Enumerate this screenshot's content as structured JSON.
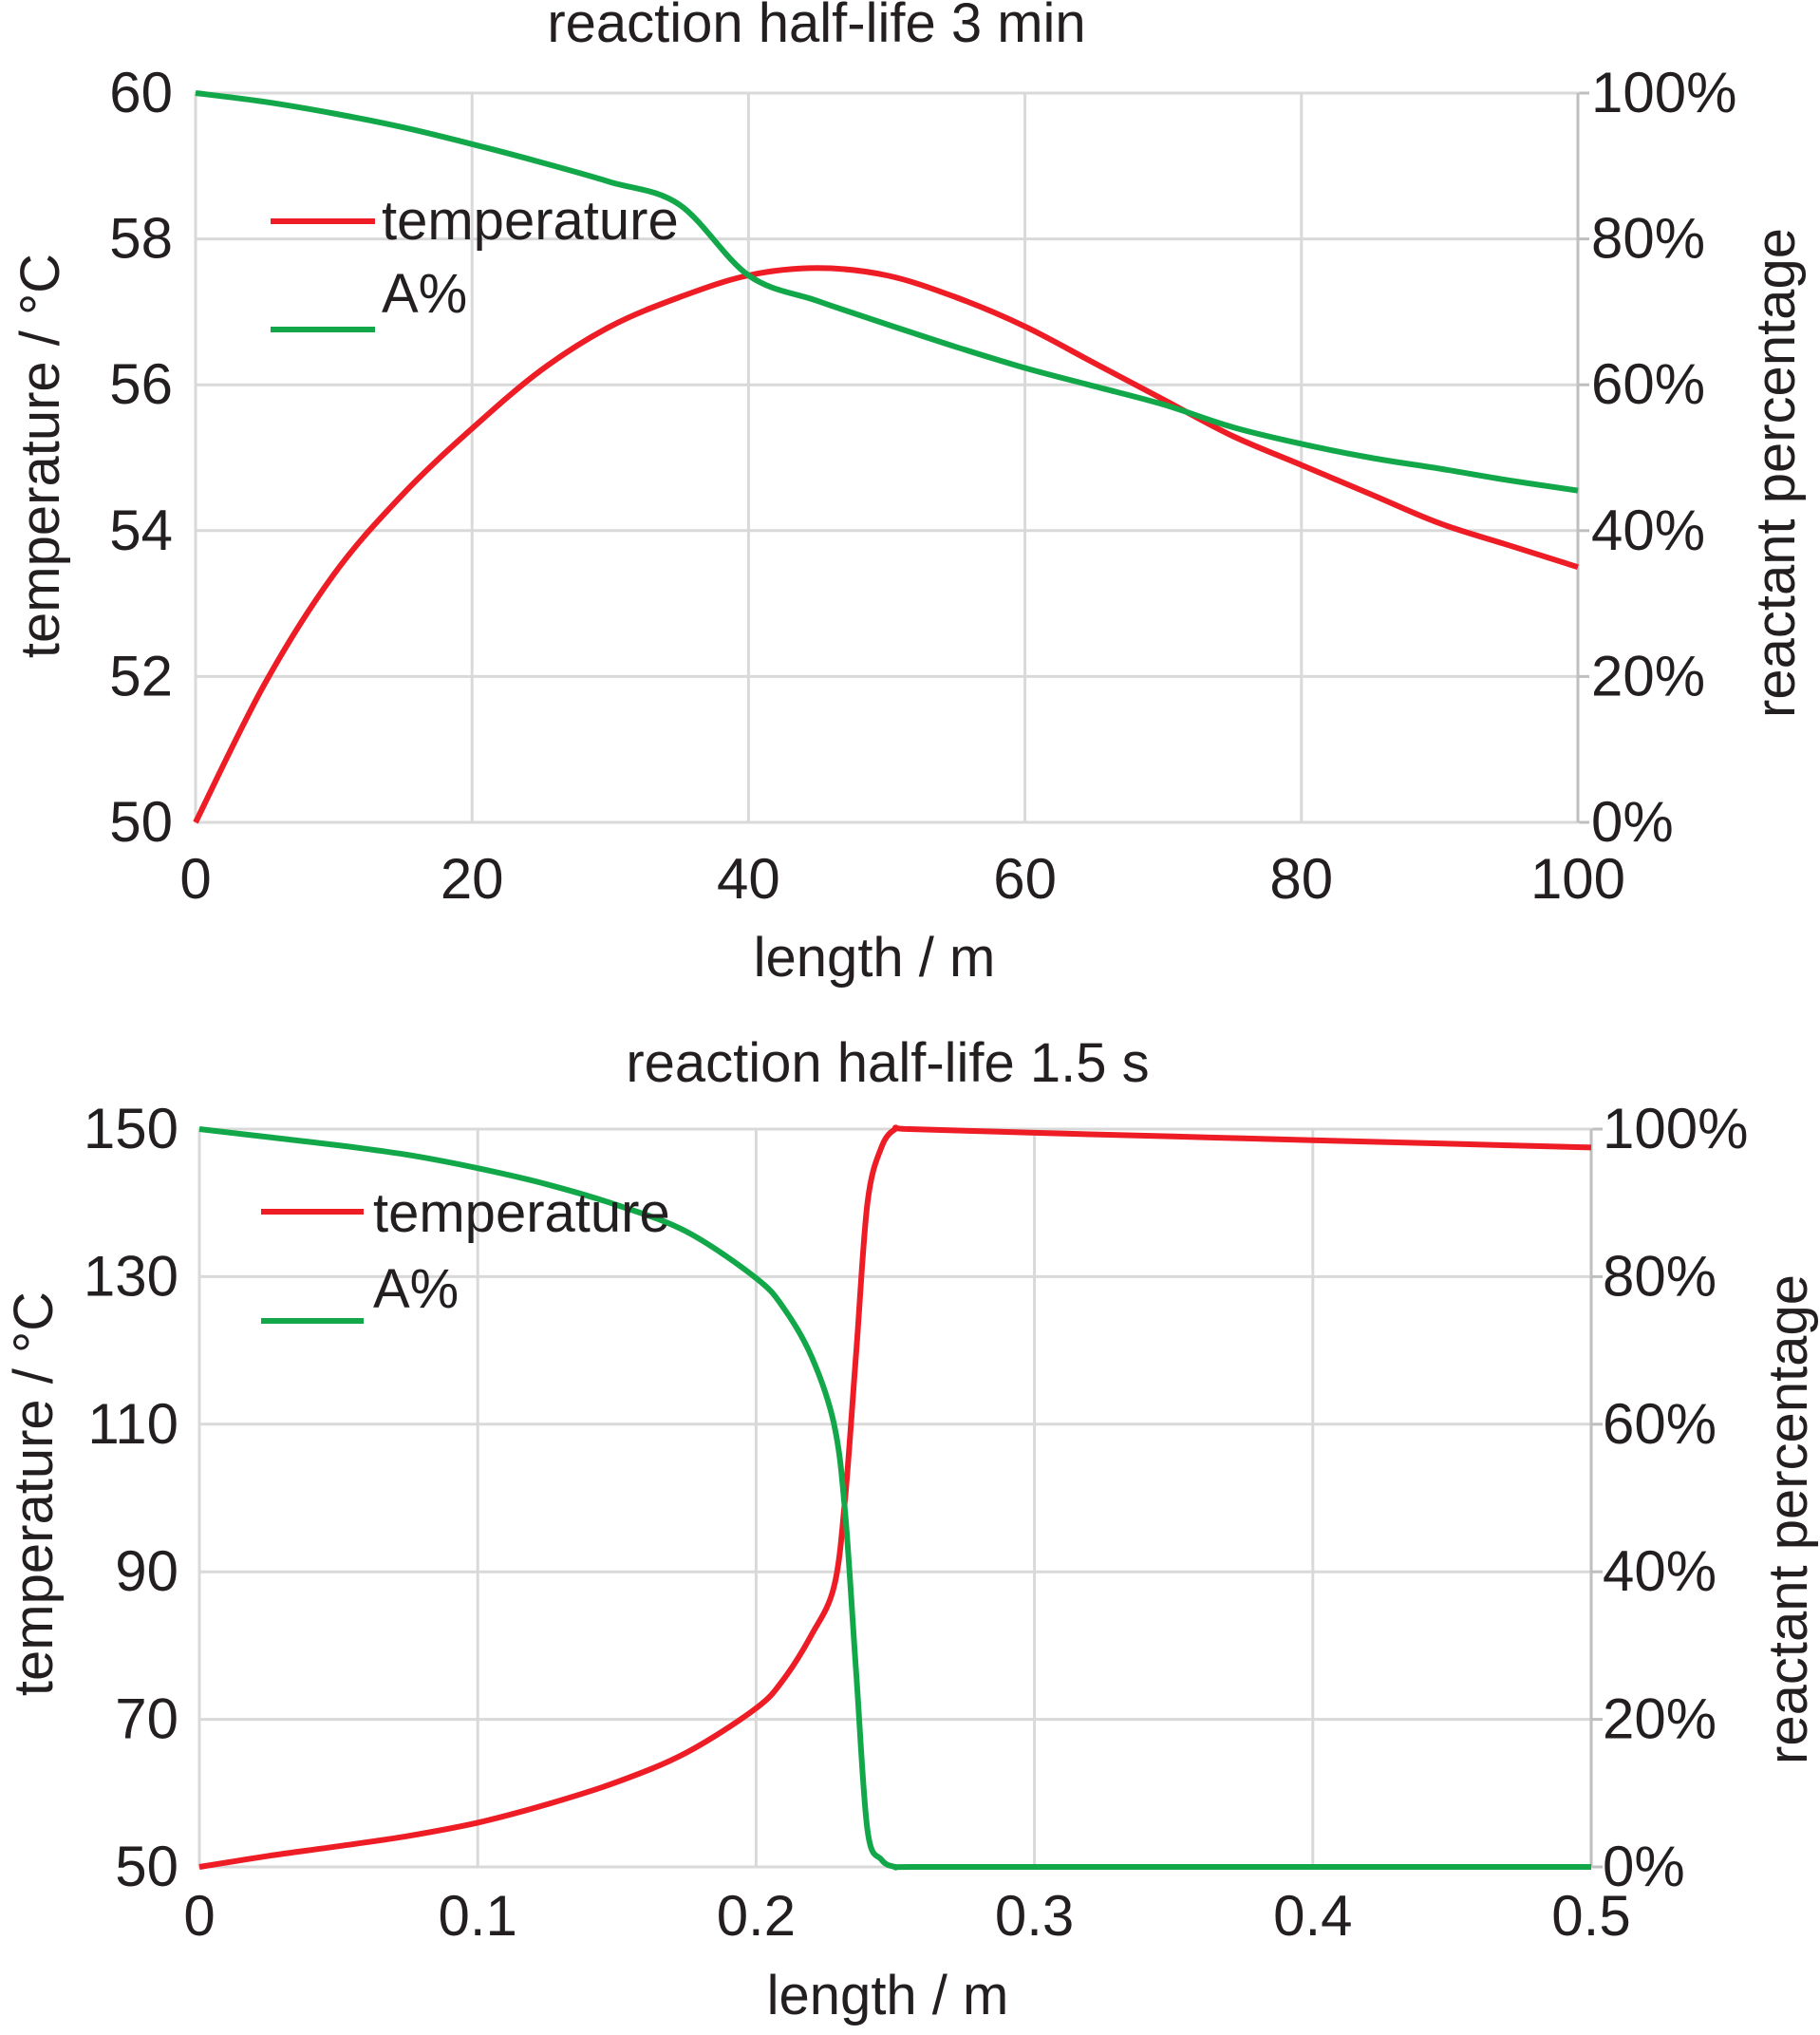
{
  "colors": {
    "temperature": "#ee1c25",
    "reactant": "#12a84a"
  },
  "chart_data": [
    {
      "type": "line",
      "title": "reaction half-life 3 min",
      "xlabel": "length / m",
      "ylabel": "temperature / °C",
      "y2label": "reactant percentage",
      "xlim": [
        0,
        100
      ],
      "ylim": [
        50,
        60
      ],
      "y2lim": [
        0,
        100
      ],
      "xticks": [
        "0",
        "20",
        "40",
        "60",
        "80",
        "100"
      ],
      "yticks": [
        "50",
        "52",
        "54",
        "56",
        "58",
        "60"
      ],
      "y2ticks": [
        "0%",
        "20%",
        "40%",
        "60%",
        "80%",
        "100%"
      ],
      "grid": true,
      "legend": "upper-left",
      "series": [
        {
          "name": "temperature",
          "axis": "left",
          "color": "#ee1c25",
          "x": [
            0,
            5,
            10,
            15,
            20,
            25,
            30,
            35,
            40,
            45,
            50,
            55,
            60,
            65,
            70,
            75,
            80,
            85,
            90,
            95,
            100
          ],
          "values": [
            50.0,
            51.9,
            53.4,
            54.5,
            55.4,
            56.2,
            56.8,
            57.2,
            57.5,
            57.6,
            57.5,
            57.2,
            56.8,
            56.3,
            55.8,
            55.3,
            54.9,
            54.5,
            54.1,
            53.8,
            53.5
          ]
        },
        {
          "name": "A%",
          "axis": "right",
          "color": "#12a84a",
          "x": [
            0,
            5,
            10,
            15,
            20,
            25,
            30,
            35,
            40,
            45,
            50,
            55,
            60,
            65,
            70,
            75,
            80,
            85,
            90,
            95,
            100
          ],
          "values": [
            100,
            98.8,
            97.2,
            95.3,
            93.0,
            90.5,
            87.8,
            84.7,
            75.0,
            71.5,
            68.3,
            65.2,
            62.3,
            59.8,
            57.3,
            54.2,
            51.9,
            50.0,
            48.5,
            46.9,
            45.5
          ]
        }
      ]
    },
    {
      "type": "line",
      "title": "reaction half-life 1.5 s",
      "xlabel": "length / m",
      "ylabel": "temperature / °C",
      "y2label": "reactant percentage",
      "xlim": [
        0,
        0.5
      ],
      "ylim": [
        50,
        150
      ],
      "y2lim": [
        0,
        100
      ],
      "xticks": [
        "0",
        "0.1",
        "0.2",
        "0.3",
        "0.4",
        "0.5"
      ],
      "yticks": [
        "50",
        "70",
        "90",
        "110",
        "130",
        "150"
      ],
      "y2ticks": [
        "0%",
        "20%",
        "40%",
        "60%",
        "80%",
        "100%"
      ],
      "grid": true,
      "legend": "upper-left",
      "series": [
        {
          "name": "temperature",
          "axis": "left",
          "color": "#ee1c25",
          "x": [
            0,
            0.025,
            0.05,
            0.075,
            0.1,
            0.125,
            0.15,
            0.175,
            0.2,
            0.21,
            0.22,
            0.228,
            0.232,
            0.236,
            0.24,
            0.245,
            0.25,
            0.255,
            0.3,
            0.35,
            0.4,
            0.45,
            0.5
          ],
          "values": [
            50,
            51.5,
            52.8,
            54.2,
            56,
            58.5,
            61.5,
            65.5,
            71.5,
            75.5,
            81.5,
            88,
            100,
            120,
            140,
            147.5,
            150,
            150,
            149.5,
            149,
            148.5,
            148,
            147.5
          ]
        },
        {
          "name": "A%",
          "axis": "right",
          "color": "#12a84a",
          "x": [
            0,
            0.025,
            0.05,
            0.075,
            0.1,
            0.125,
            0.15,
            0.175,
            0.2,
            0.21,
            0.22,
            0.228,
            0.232,
            0.236,
            0.24,
            0.245,
            0.25,
            0.255,
            0.3,
            0.35,
            0.4,
            0.45,
            0.5
          ],
          "values": [
            100,
            98.9,
            97.8,
            96.5,
            94.7,
            92.5,
            89.7,
            86.1,
            79.8,
            75.7,
            69.1,
            60.0,
            48.0,
            26.0,
            5.0,
            1.0,
            0,
            0,
            0,
            0,
            0,
            0,
            0
          ]
        }
      ]
    }
  ]
}
